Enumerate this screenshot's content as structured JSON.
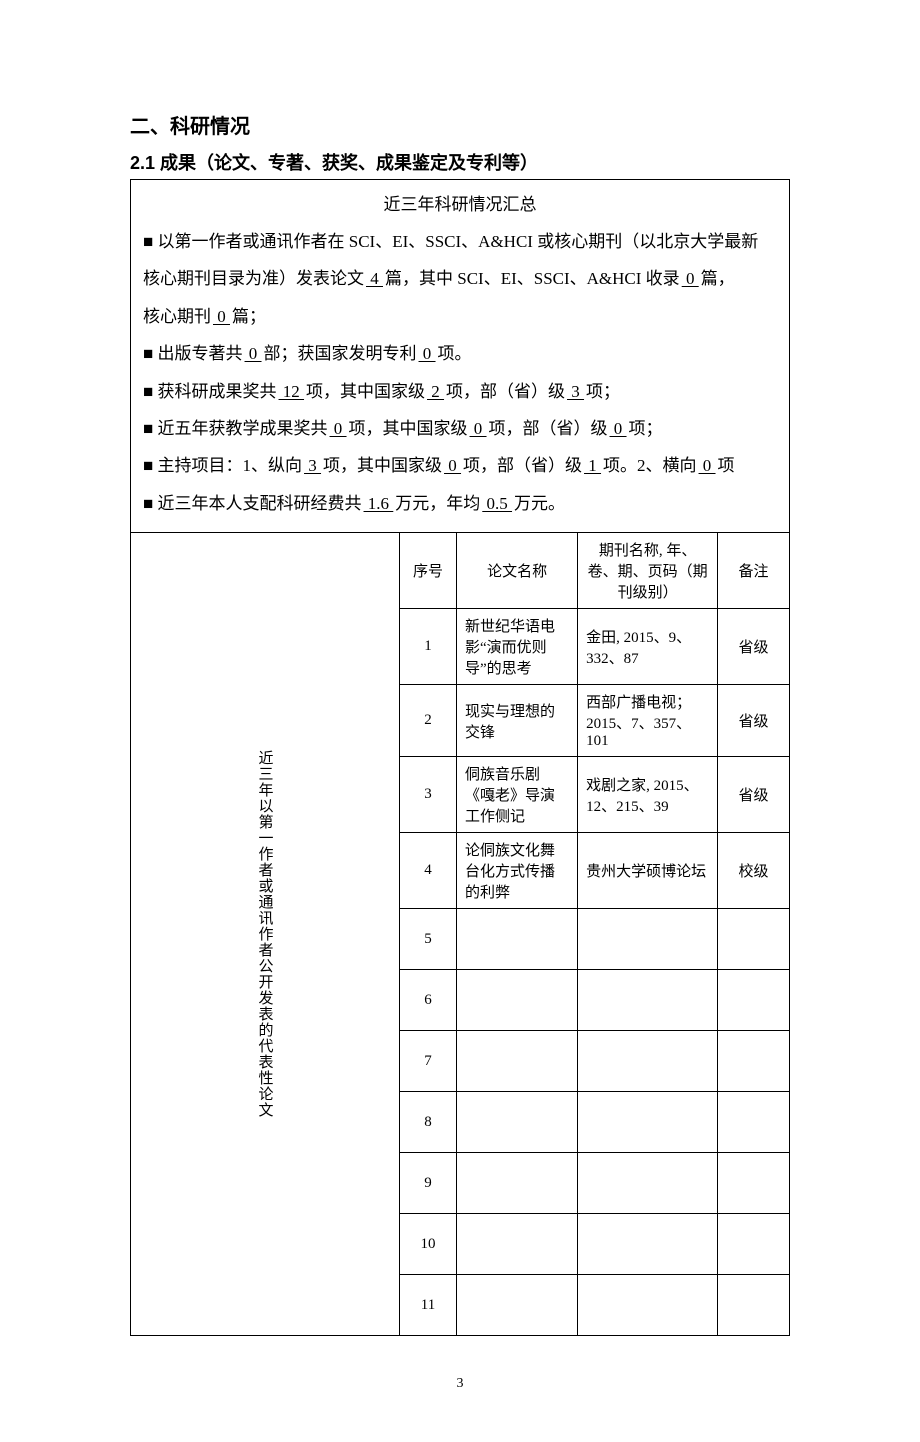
{
  "heading": "二、科研情况",
  "subheading": "2.1 成果（论文、专著、获奖、成果鉴定及专利等）",
  "summary_title": "近三年科研情况汇总",
  "bullets": {
    "l1a": "■ 以第一作者或通讯作者在 SCI、EI、SSCI、A&HCI 或核心期刊（以北京大学最新",
    "l1b_pre": "核心期刊目录为准）发表论文",
    "l1b_v1": "  4  ",
    "l1b_mid": "篇，其中 SCI、EI、SSCI、A&HCI 收录",
    "l1b_v2": " 0 ",
    "l1b_post": "篇，",
    "l1c_pre": "核心期刊",
    "l1c_v": "  0  ",
    "l1c_post": "篇；",
    "l2_pre": "■ 出版专著共",
    "l2_v1": " 0 ",
    "l2_mid": "部；获国家发明专利",
    "l2_v2": "  0  ",
    "l2_post": "项。",
    "l3_pre": "■ 获科研成果奖共",
    "l3_v1": "  12 ",
    "l3_mid1": "项，其中国家级",
    "l3_v2": "  2 ",
    "l3_mid2": "项，部（省）级",
    "l3_v3": "  3 ",
    "l3_post": "项；",
    "l4_pre": "■ 近五年获教学成果奖共",
    "l4_v1": "  0  ",
    "l4_mid1": "项，其中国家级",
    "l4_v2": "  0  ",
    "l4_mid2": "项，部（省）级",
    "l4_v3": "  0  ",
    "l4_post": "项；",
    "l5_pre": "■ 主持项目：1、纵向",
    "l5_v1": " 3 ",
    "l5_mid1": "项，其中国家级",
    "l5_v2": " 0 ",
    "l5_mid2": "项，部（省）级",
    "l5_v3": " 1 ",
    "l5_mid3": "项。2、横向",
    "l5_v4": "  0  ",
    "l5_post": "项",
    "l6_pre": "■ 近三年本人支配科研经费共",
    "l6_v1": "  1.6   ",
    "l6_mid": "万元，年均",
    "l6_v2": "  0.5   ",
    "l6_post": "万元。"
  },
  "table": {
    "vertical_label": "近三年以第一作者或通讯作者公开发表的代表性论文",
    "headers": {
      "idx": "序号",
      "title": "论文名称",
      "journal": "期刊名称,  年、卷、期、页码（期刊级别）",
      "remark": "备注"
    },
    "rows": [
      {
        "idx": "1",
        "title": "新世纪华语电影“演而优则导”的思考",
        "journal": "金田, 2015、9、332、87",
        "remark": "省级"
      },
      {
        "idx": "2",
        "title": "现实与理想的交锋",
        "journal": "西部广播电视；2015、7、357、101",
        "remark": "省级"
      },
      {
        "idx": "3",
        "title": "侗族音乐剧《嘎老》导演工作侧记",
        "journal": "戏剧之家, 2015、12、215、39",
        "remark": "省级"
      },
      {
        "idx": "4",
        "title": "论侗族文化舞台化方式传播的利弊",
        "journal": "贵州大学硕博论坛",
        "remark": "校级"
      },
      {
        "idx": "5",
        "title": "",
        "journal": "",
        "remark": ""
      },
      {
        "idx": "6",
        "title": "",
        "journal": "",
        "remark": ""
      },
      {
        "idx": "7",
        "title": "",
        "journal": "",
        "remark": ""
      },
      {
        "idx": "8",
        "title": "",
        "journal": "",
        "remark": ""
      },
      {
        "idx": "9",
        "title": "",
        "journal": "",
        "remark": ""
      },
      {
        "idx": "10",
        "title": "",
        "journal": "",
        "remark": ""
      },
      {
        "idx": "11",
        "title": "",
        "journal": "",
        "remark": ""
      }
    ]
  },
  "page_number": "3"
}
